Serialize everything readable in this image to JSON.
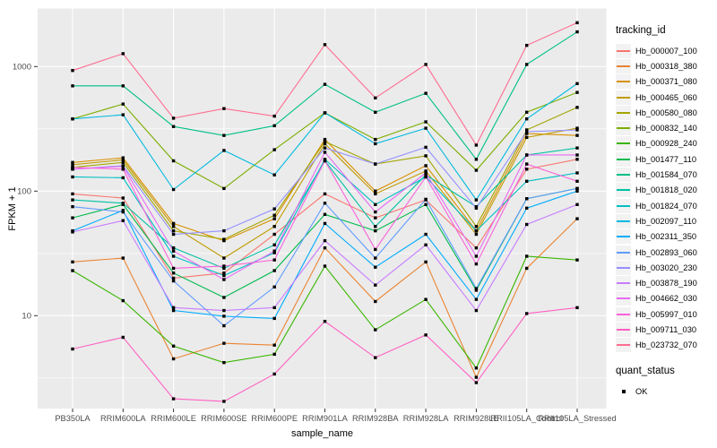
{
  "chart_data": {
    "type": "line",
    "title": "",
    "xlabel": "sample_name",
    "ylabel": "FPKM + 1",
    "y_scale": "log10",
    "y_ticks": [
      10,
      100,
      1000
    ],
    "y_minor_gridlines": [
      3.162,
      31.62,
      316.2,
      3162
    ],
    "ylim": [
      1.6,
      3500
    ],
    "grid": "on",
    "legend_position": "right",
    "panel_bg": "#EBEBEB",
    "gridline_color": "#FFFFFF",
    "point_color": "#000000",
    "tick_text_color": "#4d4d4d",
    "categories": [
      "PB350LA",
      "RRIM600LA",
      "RRIM600LE",
      "RRIM600SE",
      "RRIM600PE",
      "RRIM901LA",
      "RRIM928BA",
      "RRIM928LA",
      "RRIM928LE",
      "RRII105LA_Control",
      "RRII105LA_Stressed"
    ],
    "series": [
      {
        "name": "Hb_000007_100",
        "color": "#F8766D",
        "values": [
          95,
          88,
          20,
          22,
          45,
          95,
          61,
          85,
          35,
          150,
          180
        ]
      },
      {
        "name": "Hb_000318_380",
        "color": "#EA8331",
        "values": [
          27,
          29,
          4.5,
          6,
          5.8,
          35,
          13,
          27,
          3.2,
          24,
          60
        ]
      },
      {
        "name": "Hb_000371_080",
        "color": "#D89000",
        "values": [
          170,
          185,
          55,
          40,
          60,
          260,
          100,
          160,
          48,
          290,
          280
        ]
      },
      {
        "name": "Hb_000465_060",
        "color": "#C09B00",
        "values": [
          163,
          178,
          52,
          29,
          52,
          240,
          95,
          145,
          45,
          270,
          320
        ]
      },
      {
        "name": "Hb_000580_080",
        "color": "#A3A500",
        "values": [
          155,
          170,
          48,
          41,
          64,
          250,
          165,
          192,
          52,
          310,
          470
        ]
      },
      {
        "name": "Hb_000832_140",
        "color": "#7CAE00",
        "values": [
          380,
          500,
          175,
          105,
          215,
          425,
          260,
          360,
          147,
          430,
          620
        ]
      },
      {
        "name": "Hb_000928_240",
        "color": "#39B600",
        "values": [
          23,
          13.2,
          5.7,
          4.2,
          4.9,
          25,
          7.7,
          13.5,
          3.8,
          30,
          28
        ]
      },
      {
        "name": "Hb_001477_110",
        "color": "#00BB4E",
        "values": [
          61,
          78,
          22,
          14,
          23,
          65,
          48,
          78,
          16,
          87,
          105
        ]
      },
      {
        "name": "Hb_001584_070",
        "color": "#00C087",
        "values": [
          700,
          700,
          330,
          280,
          335,
          720,
          430,
          610,
          180,
          1040,
          1900
        ]
      },
      {
        "name": "Hb_001818_020",
        "color": "#00C1A3",
        "values": [
          85,
          80,
          35,
          24,
          37,
          175,
          52,
          135,
          75,
          195,
          222
        ]
      },
      {
        "name": "Hb_001824_070",
        "color": "#00BFC4",
        "values": [
          130,
          128,
          30,
          21,
          32,
          180,
          78,
          130,
          48,
          120,
          140
        ]
      },
      {
        "name": "Hb_002097_110",
        "color": "#00BAE0",
        "values": [
          380,
          410,
          103,
          212,
          135,
          425,
          240,
          320,
          85,
          380,
          730
        ]
      },
      {
        "name": "Hb_002311_350",
        "color": "#00ACFC",
        "values": [
          48,
          70,
          11,
          9.9,
          9.5,
          55,
          24.5,
          45,
          13.5,
          73,
          100
        ]
      },
      {
        "name": "Hb_002893_060",
        "color": "#619CFF",
        "values": [
          75,
          68,
          19,
          8.3,
          17,
          80,
          29,
          86,
          16.5,
          87,
          105
        ]
      },
      {
        "name": "Hb_003020_230",
        "color": "#9590FF",
        "values": [
          150,
          160,
          45,
          48,
          72,
          222,
          165,
          225,
          73,
          300,
          310
        ]
      },
      {
        "name": "Hb_003878_190",
        "color": "#C77CFF",
        "values": [
          47,
          58,
          11.6,
          11,
          11.6,
          40,
          17.6,
          37,
          11,
          54,
          78
        ]
      },
      {
        "name": "Hb_004662_030",
        "color": "#E76BF3",
        "values": [
          150,
          158,
          33,
          19.5,
          33,
          205,
          68,
          140,
          30,
          195,
          195
        ]
      },
      {
        "name": "Hb_005997_010",
        "color": "#FA62DB",
        "values": [
          155,
          150,
          24,
          25,
          28,
          175,
          34,
          130,
          26,
          165,
          120
        ]
      },
      {
        "name": "Hb_009711_030",
        "color": "#FF61C3",
        "values": [
          5.4,
          6.7,
          2.15,
          2.05,
          3.4,
          9,
          4.6,
          7,
          2.9,
          10.4,
          11.6
        ]
      },
      {
        "name": "Hb_023732_070",
        "color": "#FF6C91",
        "values": [
          930,
          1270,
          385,
          460,
          400,
          1500,
          560,
          1040,
          234,
          1480,
          2250
        ]
      }
    ],
    "legends": {
      "tracking_id": {
        "title": "tracking_id"
      },
      "quant_status": {
        "title": "quant_status",
        "items": [
          {
            "label": "OK"
          }
        ]
      }
    }
  }
}
